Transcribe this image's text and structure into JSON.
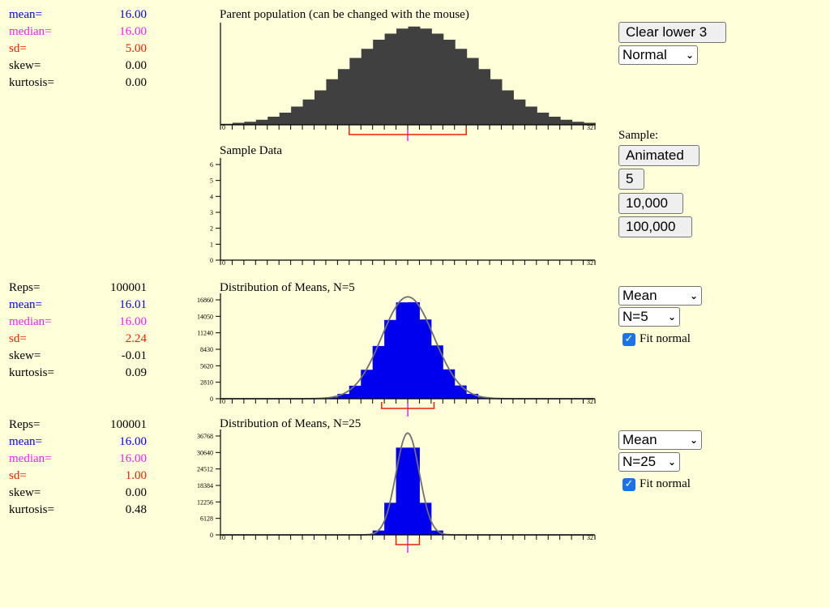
{
  "stat_labels": {
    "mean": "mean=",
    "median": "median=",
    "sd": "sd=",
    "skew": "skew=",
    "kurtosis": "kurtosis=",
    "reps": "Reps="
  },
  "parent": {
    "stats": {
      "mean": "16.00",
      "median": "16.00",
      "sd": "5.00",
      "skew": "0.00",
      "kurtosis": "0.00"
    },
    "title": "Parent population (can be changed with the mouse)",
    "x_min_label": "0",
    "x_max_label": "32",
    "bars": [
      0.01,
      0.02,
      0.03,
      0.05,
      0.08,
      0.12,
      0.18,
      0.25,
      0.34,
      0.45,
      0.55,
      0.66,
      0.75,
      0.84,
      0.9,
      0.95,
      0.97,
      0.95,
      0.9,
      0.84,
      0.75,
      0.66,
      0.55,
      0.45,
      0.34,
      0.25,
      0.18,
      0.12,
      0.08,
      0.05,
      0.03,
      0.02
    ]
  },
  "sample": {
    "title": "Sample Data",
    "y_ticks": [
      "0",
      "1",
      "2",
      "3",
      "4",
      "5",
      "6"
    ],
    "x_min_label": "0",
    "x_max_label": "32"
  },
  "dist1": {
    "reps": "100001",
    "stats": {
      "mean": "16.01",
      "median": "16.00",
      "sd": "2.24",
      "skew": "-0.01",
      "kurtosis": "0.09"
    },
    "title": "Distribution of Means, N=5",
    "y_ticks": [
      "0",
      "2810",
      "5620",
      "8430",
      "11240",
      "14050",
      "16860"
    ],
    "x_min_label": "0",
    "x_max_label": "32",
    "statistic": "Mean",
    "n_label": "N=5",
    "fit_label": "Fit normal",
    "fit_checked": true
  },
  "dist2": {
    "reps": "100001",
    "stats": {
      "mean": "16.00",
      "median": "16.00",
      "sd": "1.00",
      "skew": "0.00",
      "kurtosis": "0.48"
    },
    "title": "Distribution of Means, N=25",
    "y_ticks": [
      "0",
      "6128",
      "12256",
      "18384",
      "24512",
      "30640",
      "36768"
    ],
    "x_min_label": "0",
    "x_max_label": "32",
    "statistic": "Mean",
    "n_label": "N=25",
    "fit_label": "Fit normal",
    "fit_checked": true
  },
  "controls": {
    "clear_label": "Clear lower 3",
    "shape_select": "Normal",
    "sample_label": "Sample:",
    "animated_label": "Animated",
    "five_label": "5",
    "tenk_label": "10,000",
    "hundredk_label": "100,000"
  },
  "colors": {
    "mean": "#0000ee",
    "median": "#ee22ee",
    "sd": "#ee2200",
    "parent_bar": "#404040",
    "dist_bar": "#0000ee",
    "fit_curve": "#707070",
    "bg": "#ffffd9"
  },
  "chart_data": [
    {
      "type": "bar",
      "title": "Parent population (can be changed with the mouse)",
      "x": [
        0,
        32
      ],
      "note_values": "normal shape, mean 16, sd 5"
    },
    {
      "type": "bar",
      "title": "Sample Data",
      "ylim": [
        0,
        6
      ],
      "values": []
    },
    {
      "type": "bar",
      "title": "Distribution of Means, N=5",
      "ylim": [
        0,
        16860
      ],
      "mean": 16.01,
      "sd": 2.24
    },
    {
      "type": "bar",
      "title": "Distribution of Means, N=25",
      "ylim": [
        0,
        36768
      ],
      "mean": 16.0,
      "sd": 1.0
    }
  ]
}
